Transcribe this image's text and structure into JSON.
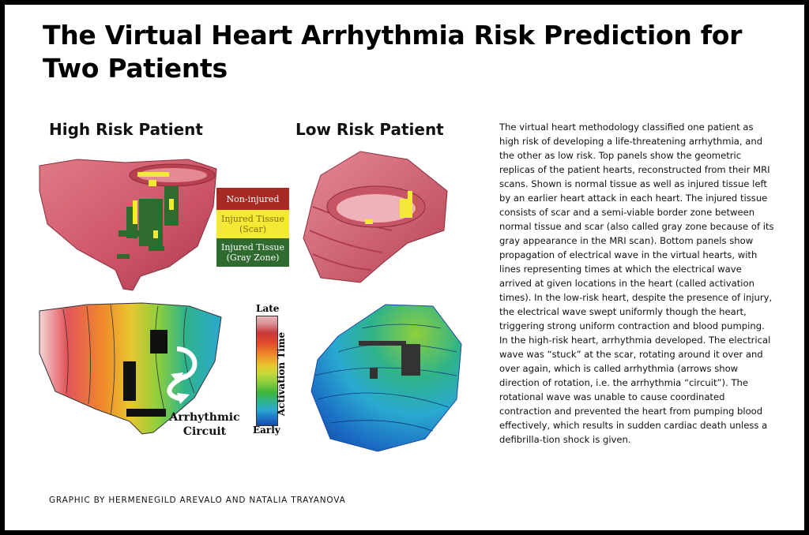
{
  "title": "The Virtual Heart Arrhythmia Risk Prediction for Two Patients",
  "panels": {
    "high": "High Risk Patient",
    "low": "Low Risk Patient"
  },
  "legend": {
    "non_injured": "Non-injured",
    "scar_line1": "Injured Tissue",
    "scar_line2": "(Scar)",
    "gray_line1": "Injured Tissue",
    "gray_line2": "(Gray Zone)"
  },
  "colorbar": {
    "late": "Late",
    "early": "Early",
    "label": "Activation Time"
  },
  "arrhythmic_label_line1": "Arrhythmic",
  "arrhythmic_label_line2": "Circuit",
  "description": "The virtual heart methodology classified one patient as high risk of developing a life-threatening arrhythmia, and the other as low risk. Top panels show the geometric replicas of the patient hearts, reconstructed from their MRI scans. Shown is normal tissue as well as injured tissue left by an earlier heart attack in each heart. The injured tissue consists of scar and a semi-viable border zone between normal tissue and scar (also called gray zone because of its gray appearance in the MRI scan). Bottom panels show propagation of electrical wave in the virtual hearts, with lines representing times at which the electrical wave arrived at given locations in the heart (called activation times). In the low-risk heart, despite the presence of injury, the electrical wave swept uniformly though the heart, triggering strong uniform contraction and blood pumping. In the high-risk heart, arrhythmia developed. The electrical wave was “stuck” at the scar, rotating around it over and over again, which is called arrhythmia (arrows show direction of rotation, i.e. the arrhythmia “circuit”). The rotational wave was unable to cause coordinated contraction and prevented the heart from pumping blood effectively, which results in sudden cardiac death unless a defibrilla-tion shock is given.",
  "credit": "GRAPHIC BY HERMENEGILD AREVALO AND NATALIA TRAYANOVA",
  "colors": {
    "tissue": "#d05a6a",
    "scar": "#f2ea33",
    "gray_zone": "#2f6a2e",
    "non_injured_swatch": "#a62a24"
  }
}
